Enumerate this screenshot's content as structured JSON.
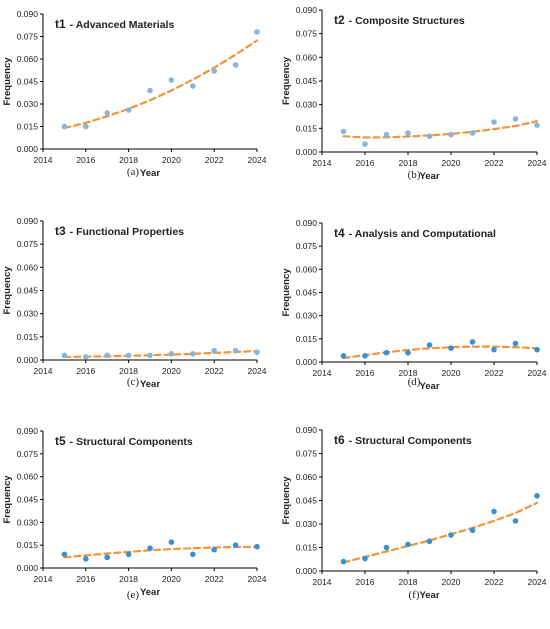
{
  "chart_data": [
    {
      "type": "scatter",
      "panel": "(a)",
      "title_id": "t1",
      "title_text": "- Advanced Materials",
      "xlabel": "Year",
      "ylabel": "Frequency",
      "x": [
        2015,
        2016,
        2017,
        2018,
        2019,
        2020,
        2021,
        2022,
        2023,
        2024
      ],
      "y": [
        0.015,
        0.015,
        0.024,
        0.026,
        0.039,
        0.046,
        0.042,
        0.052,
        0.056,
        0.078
      ],
      "trend_y": [
        0.014,
        0.0175,
        0.0218,
        0.0268,
        0.0325,
        0.039,
        0.0462,
        0.0542,
        0.0629,
        0.0723
      ],
      "xlim": [
        2014,
        2024
      ],
      "ylim": [
        0,
        0.09
      ],
      "xticks": [
        "2014",
        "2016",
        "2018",
        "2020",
        "2022",
        "2024"
      ],
      "yticks": [
        "0.000",
        "0.015",
        "0.030",
        "0.045",
        "0.060",
        "0.075",
        "0.090"
      ],
      "trend": "polynomial, dashed"
    },
    {
      "type": "scatter",
      "panel": "(b)",
      "title_id": "t2",
      "title_text": "- Composite Structures",
      "xlabel": "Year",
      "ylabel": "Frequency",
      "x": [
        2015,
        2016,
        2017,
        2018,
        2019,
        2020,
        2021,
        2022,
        2023,
        2024
      ],
      "y": [
        0.013,
        0.005,
        0.011,
        0.012,
        0.01,
        0.011,
        0.012,
        0.019,
        0.021,
        0.017
      ],
      "trend_y": [
        0.01,
        0.0092,
        0.0093,
        0.0098,
        0.0105,
        0.0115,
        0.0128,
        0.0145,
        0.0165,
        0.0195
      ],
      "xlim": [
        2014,
        2024
      ],
      "ylim": [
        0,
        0.09
      ],
      "xticks": [
        "2014",
        "2016",
        "2018",
        "2020",
        "2022",
        "2024"
      ],
      "yticks": [
        "0.000",
        "0.015",
        "0.030",
        "0.045",
        "0.060",
        "0.075",
        "0.090"
      ],
      "trend": "polynomial, dashed"
    },
    {
      "type": "scatter",
      "panel": "(c)",
      "title_id": "t3",
      "title_text": "- Functional Properties",
      "xlabel": "Year",
      "ylabel": "Frequency",
      "x": [
        2015,
        2016,
        2017,
        2018,
        2019,
        2020,
        2021,
        2022,
        2023,
        2024
      ],
      "y": [
        0.003,
        0.002,
        0.003,
        0.003,
        0.003,
        0.004,
        0.004,
        0.006,
        0.006,
        0.005
      ],
      "trend_y": [
        0.002,
        0.0022,
        0.0024,
        0.0027,
        0.0031,
        0.0035,
        0.004,
        0.0046,
        0.0052,
        0.0058
      ],
      "xlim": [
        2014,
        2024
      ],
      "ylim": [
        0,
        0.09
      ],
      "xticks": [
        "2014",
        "2016",
        "2018",
        "2020",
        "2022",
        "2024"
      ],
      "yticks": [
        "0.000",
        "0.015",
        "0.030",
        "0.045",
        "0.060",
        "0.075",
        "0.090"
      ],
      "trend": "polynomial, dashed"
    },
    {
      "type": "scatter",
      "panel": "(d)",
      "title_id": "t4",
      "title_text": "- Analysis and Computational",
      "xlabel": "Year",
      "ylabel": "Frequency",
      "x": [
        2015,
        2016,
        2017,
        2018,
        2019,
        2020,
        2021,
        2022,
        2023,
        2024
      ],
      "y": [
        0.004,
        0.004,
        0.006,
        0.006,
        0.011,
        0.009,
        0.013,
        0.008,
        0.012,
        0.008
      ],
      "trend_y": [
        0.0025,
        0.0045,
        0.0063,
        0.0078,
        0.0089,
        0.0096,
        0.01,
        0.01,
        0.0096,
        0.0089
      ],
      "xlim": [
        2014,
        2024
      ],
      "ylim": [
        0,
        0.09
      ],
      "xticks": [
        "2014",
        "2016",
        "2018",
        "2020",
        "2022",
        "2024"
      ],
      "yticks": [
        "0.000",
        "0.015",
        "0.030",
        "0.045",
        "0.060",
        "0.075",
        "0.090"
      ],
      "trend": "polynomial, dashed"
    },
    {
      "type": "scatter",
      "panel": "(e)",
      "title_id": "t5",
      "title_text": "- Structural Components",
      "xlabel": "Year",
      "ylabel": "Frequency",
      "x": [
        2015,
        2016,
        2017,
        2018,
        2019,
        2020,
        2021,
        2022,
        2023,
        2024
      ],
      "y": [
        0.009,
        0.006,
        0.007,
        0.009,
        0.013,
        0.017,
        0.009,
        0.012,
        0.015,
        0.014
      ],
      "trend_y": [
        0.007,
        0.0083,
        0.0095,
        0.0106,
        0.0116,
        0.0124,
        0.013,
        0.0135,
        0.0138,
        0.0139
      ],
      "xlim": [
        2014,
        2024
      ],
      "ylim": [
        0,
        0.09
      ],
      "xticks": [
        "2014",
        "2016",
        "2018",
        "2020",
        "2022",
        "2024"
      ],
      "yticks": [
        "0.000",
        "0.015",
        "0.030",
        "0.045",
        "0.060",
        "0.075",
        "0.090"
      ],
      "trend": "polynomial, dashed"
    },
    {
      "type": "scatter",
      "panel": "(f)",
      "title_id": "t6",
      "title_text": "- Structural Components",
      "xlabel": "Year",
      "ylabel": "Frequency",
      "x": [
        2015,
        2016,
        2017,
        2018,
        2019,
        2020,
        2021,
        2022,
        2023,
        2024
      ],
      "y": [
        0.006,
        0.008,
        0.015,
        0.017,
        0.019,
        0.023,
        0.026,
        0.038,
        0.032,
        0.048
      ],
      "trend_y": [
        0.0055,
        0.009,
        0.0125,
        0.016,
        0.0195,
        0.0235,
        0.0275,
        0.032,
        0.037,
        0.0435
      ],
      "xlim": [
        2014,
        2024
      ],
      "ylim": [
        0,
        0.09
      ],
      "xticks": [
        "2014",
        "2016",
        "2018",
        "2020",
        "2022",
        "2024"
      ],
      "yticks": [
        "0.000",
        "0.015",
        "0.030",
        "0.045",
        "0.060",
        "0.075",
        "0.090"
      ],
      "trend": "polynomial, dashed"
    }
  ],
  "colors": {
    "points_light": "#8ab4dc",
    "points_dark": "#3a8fd0",
    "trend": "#f0953a",
    "axis": "#000000"
  }
}
